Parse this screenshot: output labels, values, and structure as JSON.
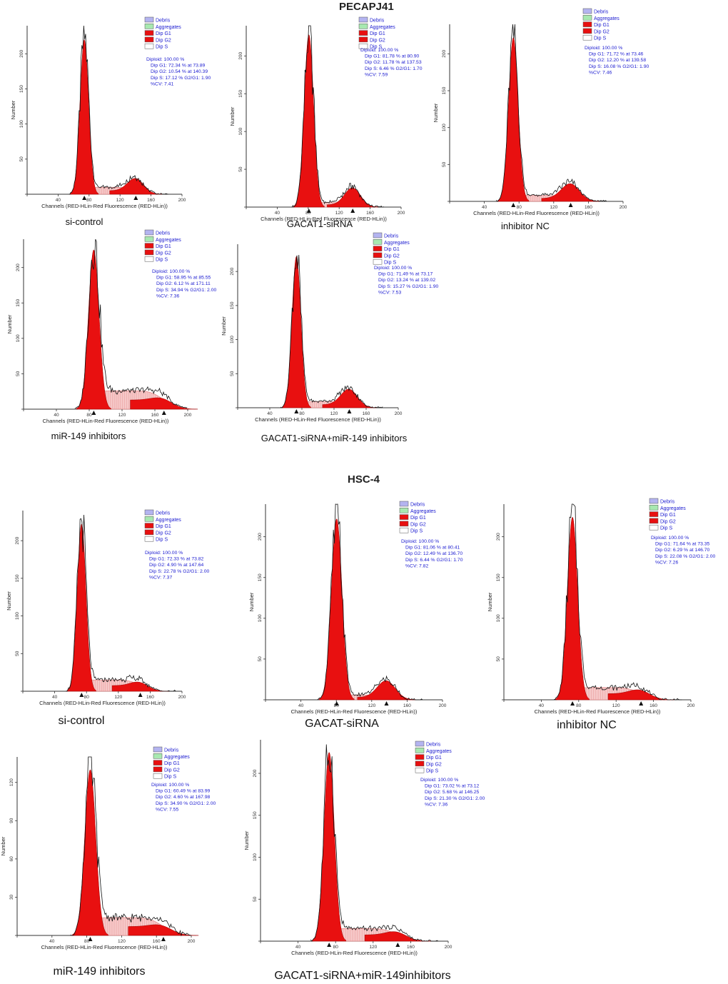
{
  "figure": {
    "section_titles": [
      "PECAPJ41",
      "HSC-4"
    ],
    "legend_items": [
      {
        "label": "Debris",
        "color": "#b4b4f0"
      },
      {
        "label": "Aggregates",
        "color": "#a8e8b0"
      },
      {
        "label": "Dip G1",
        "color": "#e81010"
      },
      {
        "label": "Dip G2",
        "color": "#e81010"
      },
      {
        "label": "Dip S",
        "color": "#ffffff"
      }
    ],
    "axis_text": {
      "xlabel": "Channels (RED-HLin-Red Fluorescence (RED-HLin))",
      "xlabel_short": "Channels (RED-HLin-Red Fluorescence (RED-HLin))",
      "ylabel": "Number"
    },
    "colors": {
      "g1": "#e81010",
      "g2": "#e81010",
      "s_phase": "#f6c8c8",
      "s_line": "#e08080",
      "stats_text": "#1a1ad0",
      "axis": "#333333"
    }
  },
  "chart_data": [
    {
      "type": "area",
      "section": "PECAPJ41",
      "title": "si-control",
      "ylim": [
        0,
        240
      ],
      "xlim": [
        0,
        200
      ],
      "yticks": [
        0,
        50,
        100,
        150,
        200
      ],
      "xticks": [
        0,
        40,
        80,
        120,
        160,
        200
      ],
      "g1_peak": {
        "mean": 73.89,
        "height": 220
      },
      "g2_peak": {
        "mean": 140.39,
        "height": 20
      },
      "s_level": 10,
      "stats": [
        "Diploid: 100.00 %",
        "Dip G1: 72.34 % at 73.89",
        "Dip G2: 10.54 % at 140.39",
        "Dip S: 17.12 %   G2/G1: 1.90",
        "%CV: 7.41"
      ]
    },
    {
      "type": "area",
      "section": "PECAPJ41",
      "title": "GACAT1-siRNA",
      "ylim": [
        0,
        240
      ],
      "xlim": [
        0,
        200
      ],
      "yticks": [
        0,
        50,
        100,
        150,
        200
      ],
      "xticks": [
        0,
        40,
        80,
        120,
        160,
        200
      ],
      "g1_peak": {
        "mean": 80.9,
        "height": 228
      },
      "g2_peak": {
        "mean": 137.53,
        "height": 24
      },
      "s_level": 6,
      "stats": [
        "Diploid: 100.00 %",
        "Dip G1: 81.78 % at 80.90",
        "Dip G2: 11.78 % at 137.53",
        "Dip S: 6.46 %   G2/G1: 1.70",
        "%CV: 7.59"
      ]
    },
    {
      "type": "area",
      "section": "PECAPJ41",
      "title": "inhibitor NC",
      "ylim": [
        0,
        240
      ],
      "xlim": [
        0,
        200
      ],
      "yticks": [
        0,
        50,
        100,
        150,
        200
      ],
      "xticks": [
        0,
        40,
        80,
        120,
        160,
        200
      ],
      "g1_peak": {
        "mean": 73.46,
        "height": 222
      },
      "g2_peak": {
        "mean": 139.58,
        "height": 22
      },
      "s_level": 8,
      "stats": [
        "Diploid: 100.00 %",
        "Dip G1: 71.72 % at 73.46",
        "Dip G2: 12.20 % at 139.58",
        "Dip S: 16.08 %   G2/G1: 1.90",
        "%CV: 7.46"
      ]
    },
    {
      "type": "area",
      "section": "PECAPJ41",
      "title": "miR-149 inhibitors",
      "ylim": [
        0,
        240
      ],
      "xlim": [
        0,
        200
      ],
      "yticks": [
        0,
        50,
        100,
        150,
        200
      ],
      "xticks": [
        0,
        40,
        80,
        120,
        160,
        200
      ],
      "g1_peak": {
        "mean": 85.55,
        "height": 225
      },
      "g2_peak": {
        "mean": 171.11,
        "height": 8
      },
      "s_level": 26,
      "stats": [
        "Diploid: 100.00 %",
        "Dip G1: 58.95 % at 85.55",
        "Dip G2: 6.12 % at 171.11",
        "Dip S: 34.94 %   G2/G1: 2.00",
        "%CV: 7.36"
      ]
    },
    {
      "type": "area",
      "section": "PECAPJ41",
      "title": "GACAT1-siRNA+miR-149 inhibitors",
      "ylim": [
        0,
        240
      ],
      "xlim": [
        0,
        200
      ],
      "yticks": [
        0,
        50,
        100,
        150,
        200
      ],
      "xticks": [
        0,
        40,
        80,
        120,
        160,
        200
      ],
      "g1_peak": {
        "mean": 73.17,
        "height": 222
      },
      "g2_peak": {
        "mean": 139.02,
        "height": 25
      },
      "s_level": 9,
      "stats": [
        "Diploid: 100.00 %",
        "Dip G1: 71.49 % at 73.17",
        "Dip G2: 13.24 % at 139.02",
        "Dip S: 15.27 %   G2/G1: 1.90",
        "%CV: 7.53"
      ]
    },
    {
      "type": "area",
      "section": "HSC-4",
      "title": "si-control",
      "ylim": [
        0,
        240
      ],
      "xlim": [
        0,
        200
      ],
      "yticks": [
        0,
        50,
        100,
        150,
        200
      ],
      "xticks": [
        0,
        40,
        80,
        120,
        160,
        200
      ],
      "g1_peak": {
        "mean": 73.82,
        "height": 222
      },
      "g2_peak": {
        "mean": 147.64,
        "height": 8
      },
      "s_level": 15,
      "stats": [
        "Diploid: 100.00 %",
        "Dip G1: 72.33 % at 73.82",
        "Dip G2: 4.90 % at 147.64",
        "Dip S: 22.78 %   G2/G1: 2.00",
        "%CV: 7.37"
      ]
    },
    {
      "type": "area",
      "section": "HSC-4",
      "title": "GACAT-siRNA",
      "ylim": [
        0,
        240
      ],
      "xlim": [
        0,
        200
      ],
      "yticks": [
        0,
        50,
        100,
        150,
        200
      ],
      "xticks": [
        0,
        40,
        80,
        120,
        160,
        200
      ],
      "g1_peak": {
        "mean": 80.41,
        "height": 222
      },
      "g2_peak": {
        "mean": 136.7,
        "height": 22
      },
      "s_level": 6,
      "stats": [
        "Diploid: 100.00 %",
        "Dip G1: 81.06 % at 80.41",
        "Dip G2: 12.49 % at 136.70",
        "Dip S: 6.44 %   G2/G1: 1.70",
        "%CV: 7.82"
      ]
    },
    {
      "type": "area",
      "section": "HSC-4",
      "title": "inhibitor NC",
      "ylim": [
        0,
        240
      ],
      "xlim": [
        0,
        200
      ],
      "yticks": [
        0,
        50,
        100,
        150,
        200
      ],
      "xticks": [
        0,
        40,
        80,
        120,
        160,
        200
      ],
      "g1_peak": {
        "mean": 73.35,
        "height": 224
      },
      "g2_peak": {
        "mean": 146.7,
        "height": 8
      },
      "s_level": 15,
      "stats": [
        "Diploid: 100.00 %",
        "Dip G1: 71.64 % at 73.35",
        "Dip G2: 6.29 % at 146.70",
        "Dip S: 22.08 %   G2/G1: 2.00",
        "%CV: 7.26"
      ]
    },
    {
      "type": "area",
      "section": "HSC-4",
      "title": "miR-149 inhibitors",
      "ylim": [
        0,
        140
      ],
      "xlim": [
        0,
        200
      ],
      "yticks": [
        0,
        30,
        60,
        90,
        120
      ],
      "xticks": [
        0,
        40,
        80,
        120,
        160,
        200
      ],
      "g1_peak": {
        "mean": 83.99,
        "height": 130
      },
      "g2_peak": {
        "mean": 167.98,
        "height": 4
      },
      "s_level": 14,
      "stats": [
        "Diploid: 100.00 %",
        "Dip G1: 60.49 % at 83.99",
        "Dip G2: 4.60 % at 167.98",
        "Dip S: 34.90 %   G2/G1: 2.00",
        "%CV: 7.55"
      ]
    },
    {
      "type": "area",
      "section": "HSC-4",
      "title": "GACAT1-siRNA+miR-149inhibitors",
      "ylim": [
        0,
        240
      ],
      "xlim": [
        0,
        200
      ],
      "yticks": [
        0,
        50,
        100,
        150,
        200
      ],
      "xticks": [
        0,
        40,
        80,
        120,
        160,
        200
      ],
      "g1_peak": {
        "mean": 73.12,
        "height": 225
      },
      "g2_peak": {
        "mean": 146.25,
        "height": 7
      },
      "s_level": 15,
      "stats": [
        "Diploid: 100.00 %",
        "Dip G1: 73.02 % at 73.12",
        "Dip G2: 5.68 % at 146.25",
        "Dip S: 21.30 %   G2/G1: 2.00",
        "%CV: 7.36"
      ]
    }
  ]
}
